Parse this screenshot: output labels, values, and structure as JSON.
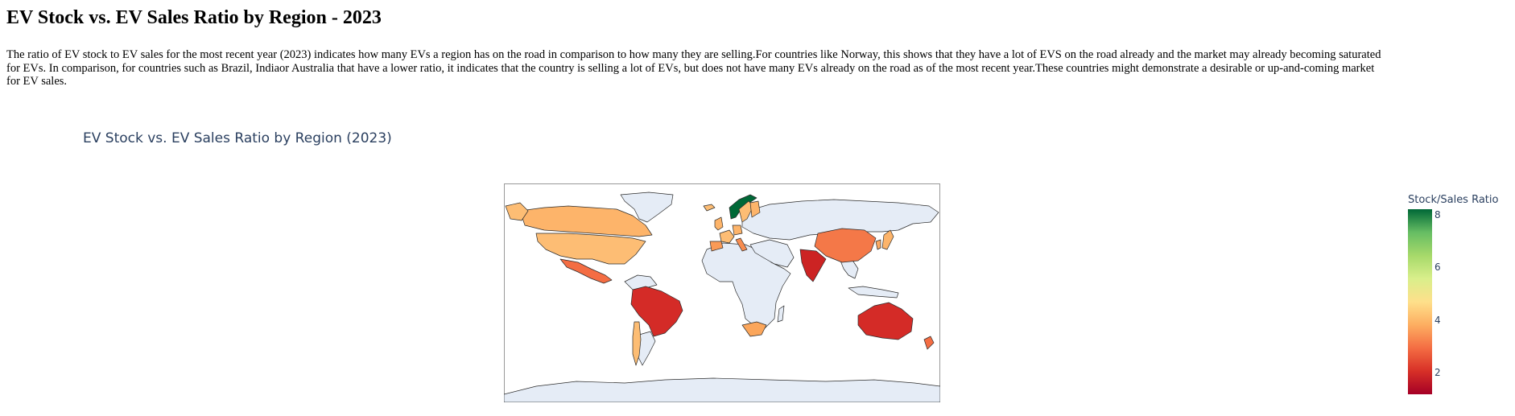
{
  "page": {
    "heading": "EV Stock vs. EV Sales Ratio by Region - 2023",
    "description": "The ratio of EV stock to EV sales for the most recent year (2023) indicates how many EVs a region has on the road in comparison to how many they are selling.For countries like Norway, this shows that they have a lot of EVS on the road already and the market may already becoming saturated\nfor EVs. In comparison, for countries such as Brazil, Indiaor Australia that have a lower ratio, it indicates that the country is selling a lot of EVs, but does not have many EVs already on the road as of the most recent year.These countries might demonstrate a desirable or up-and-coming market\nfor EV sales."
  },
  "chart": {
    "title": "EV Stock vs. EV Sales Ratio by Region (2023)",
    "colorbar": {
      "title": "Stock/Sales Ratio",
      "ticks": [
        "8",
        "6",
        "4",
        "2"
      ]
    },
    "colors": {
      "no_data_land": "#e5ecf6",
      "coastline": "#2a2a2a",
      "frame": "#999999",
      "title_text": "#2a3f5f"
    }
  },
  "chart_data": {
    "type": "choropleth",
    "projection": "equirectangular",
    "colorscale": "RdYlGn",
    "color_range": [
      1,
      8
    ],
    "colorbar_title": "Stock/Sales Ratio",
    "regions": [
      {
        "name": "Norway",
        "value": 8
      },
      {
        "name": "Sweden",
        "value": 4.2
      },
      {
        "name": "Finland",
        "value": 3.8
      },
      {
        "name": "Denmark",
        "value": 3.6
      },
      {
        "name": "Iceland",
        "value": 4.0
      },
      {
        "name": "United Kingdom",
        "value": 3.9
      },
      {
        "name": "France",
        "value": 3.8
      },
      {
        "name": "Germany",
        "value": 3.7
      },
      {
        "name": "Spain",
        "value": 3.3
      },
      {
        "name": "Italy",
        "value": 3.2
      },
      {
        "name": "Canada",
        "value": 3.7
      },
      {
        "name": "USA",
        "value": 3.8
      },
      {
        "name": "Mexico",
        "value": 2.4
      },
      {
        "name": "Chile",
        "value": 3.6
      },
      {
        "name": "Brazil",
        "value": 1.8
      },
      {
        "name": "India",
        "value": 1.6
      },
      {
        "name": "China",
        "value": 2.8
      },
      {
        "name": "Japan",
        "value": 3.5
      },
      {
        "name": "Korea",
        "value": 3.4
      },
      {
        "name": "South Africa",
        "value": 3.4
      },
      {
        "name": "Australia",
        "value": 2.0
      },
      {
        "name": "New Zealand",
        "value": 2.6
      }
    ]
  }
}
